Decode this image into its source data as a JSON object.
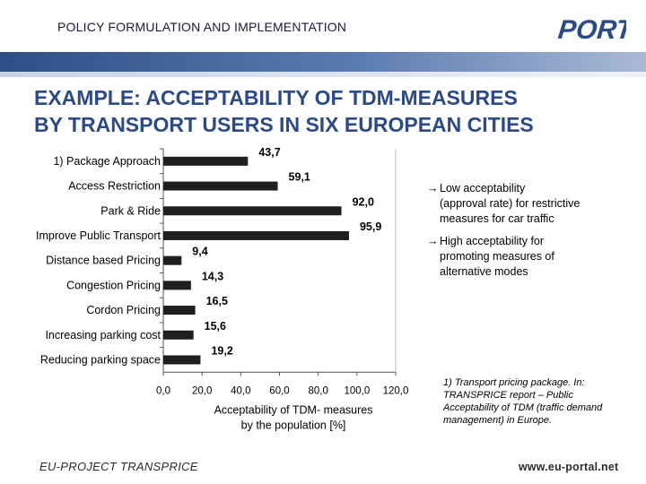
{
  "header": {
    "section_title": "POLICY FORMULATION AND IMPLEMENTATION",
    "logo_text": "PORTAL"
  },
  "slide": {
    "title_line1": "EXAMPLE: ACCEPTABILITY OF TDM-MEASURES",
    "title_line2": "BY TRANSPORT USERS IN SIX EUROPEAN CITIES"
  },
  "chart_data": {
    "type": "bar",
    "orientation": "horizontal",
    "categories": [
      "1) Package Approach",
      "Access Restriction",
      "Park & Ride",
      "Improve Public Transport",
      "Distance based Pricing",
      "Congestion Pricing",
      "Cordon Pricing",
      "Increasing parking cost",
      "Reducing parking space"
    ],
    "values": [
      43.7,
      59.1,
      92.0,
      95.9,
      9.4,
      14.3,
      16.5,
      15.6,
      19.2
    ],
    "value_labels": [
      "43,7",
      "59,1",
      "92,0",
      "95,9",
      "9,4",
      "14,3",
      "16,5",
      "15,6",
      "19,2"
    ],
    "xticks": [
      "0,0",
      "20,0",
      "40,0",
      "60,0",
      "80,0",
      "100,0",
      "120,0"
    ],
    "xlim": [
      0,
      120
    ],
    "xlabel_line1": "Acceptability of TDM- measures",
    "xlabel_line2": "by the population [%]",
    "bar_color": "#1f1f1f"
  },
  "bullets": [
    {
      "icon": "arrow-right-icon",
      "arrow": "→",
      "lines": [
        "Low acceptability",
        "(approval rate) for restrictive",
        "measures for car traffic"
      ]
    },
    {
      "icon": "arrow-right-icon",
      "arrow": "→",
      "lines": [
        "High acceptability for",
        "promoting measures of",
        "alternative modes"
      ]
    }
  ],
  "footnote": "1) Transport pricing package. In: TRANSPRICE report – Public Acceptability of TDM (traffic demand management) in Europe.",
  "footer": {
    "project": "EU-PROJECT TRANSPRICE",
    "website": "www.eu-portal.net"
  }
}
